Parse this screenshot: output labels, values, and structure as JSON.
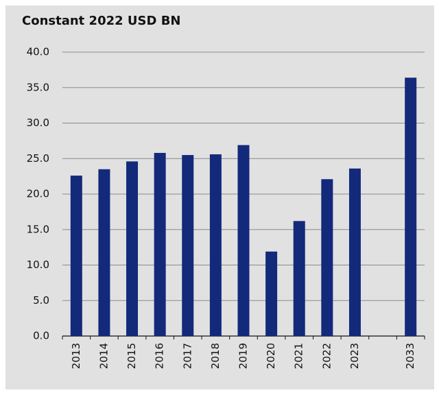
{
  "chart_data": {
    "type": "bar",
    "title": "Constant 2022 USD BN",
    "categories": [
      "2013",
      "2014",
      "2015",
      "2016",
      "2017",
      "2018",
      "2019",
      "2020",
      "2021",
      "2022",
      "2023",
      null,
      "2033"
    ],
    "values": [
      22.6,
      23.5,
      24.6,
      25.8,
      25.5,
      25.6,
      26.9,
      11.9,
      16.2,
      22.1,
      23.6,
      null,
      36.4
    ],
    "color": "#13297a",
    "ylim": [
      0,
      40
    ],
    "yticks": [
      {
        "value": 0,
        "label": "0.0"
      },
      {
        "value": 5,
        "label": "5.0"
      },
      {
        "value": 10,
        "label": "10.0"
      },
      {
        "value": 15,
        "label": "15.0"
      },
      {
        "value": 20,
        "label": "20.0"
      },
      {
        "value": 25,
        "label": "25.0"
      },
      {
        "value": 30,
        "label": "30.0"
      },
      {
        "value": 35,
        "label": "35.0"
      },
      {
        "value": 40,
        "label": "40.0"
      }
    ],
    "grid": true
  }
}
